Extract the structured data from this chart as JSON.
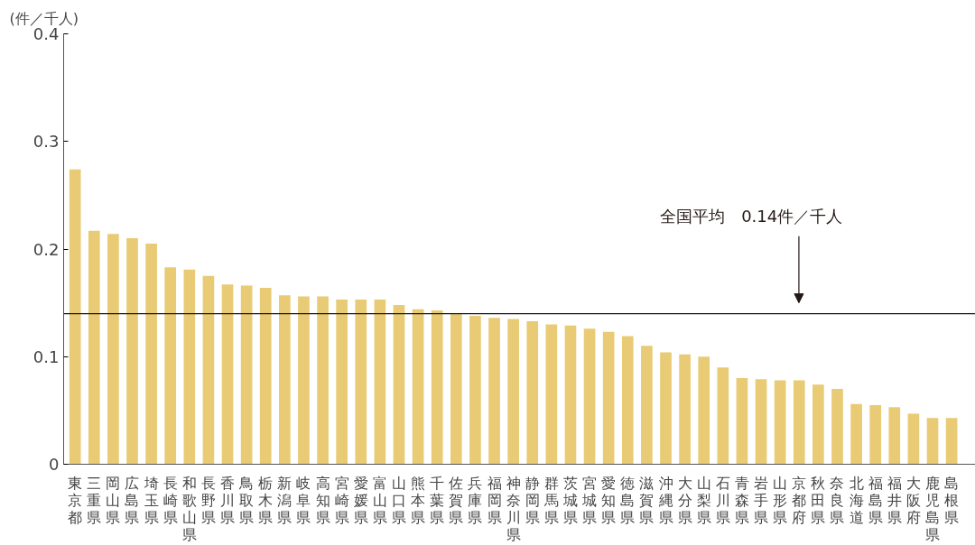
{
  "chart_data": {
    "type": "bar",
    "ylabel": "(件／千人)",
    "categories": [
      "東京都",
      "三重県",
      "岡山県",
      "広島県",
      "埼玉県",
      "長崎県",
      "和歌山県",
      "長野県",
      "香川県",
      "鳥取県",
      "栃木県",
      "新潟県",
      "岐阜県",
      "高知県",
      "宮崎県",
      "愛媛県",
      "富山県",
      "山口県",
      "熊本県",
      "千葉県",
      "佐賀県",
      "兵庫県",
      "福岡県",
      "神奈川県",
      "静岡県",
      "群馬県",
      "茨城県",
      "宮城県",
      "愛知県",
      "徳島県",
      "滋賀県",
      "沖縄県",
      "大分県",
      "山梨県",
      "石川県",
      "青森県",
      "岩手県",
      "山形県",
      "京都府",
      "秋田県",
      "奈良県",
      "北海道",
      "福島県",
      "福井県",
      "大阪府",
      "鹿児島県",
      "島根県"
    ],
    "values": [
      0.274,
      0.217,
      0.214,
      0.21,
      0.205,
      0.183,
      0.181,
      0.175,
      0.167,
      0.166,
      0.164,
      0.157,
      0.156,
      0.156,
      0.153,
      0.153,
      0.153,
      0.148,
      0.144,
      0.143,
      0.14,
      0.138,
      0.136,
      0.135,
      0.133,
      0.13,
      0.129,
      0.126,
      0.123,
      0.119,
      0.11,
      0.104,
      0.102,
      0.1,
      0.09,
      0.08,
      0.079,
      0.078,
      0.078,
      0.074,
      0.07,
      0.056,
      0.055,
      0.053,
      0.047,
      0.043,
      0.043
    ],
    "color": "#e8cb74",
    "ylim": [
      0,
      0.4
    ],
    "yticks": [
      0,
      0.1,
      0.2,
      0.3,
      0.4
    ],
    "grid": false,
    "ref_lines": [
      {
        "axis": "y",
        "value": 0.14,
        "label": "全国平均　0.14件／千人",
        "color": "#231815"
      }
    ]
  }
}
